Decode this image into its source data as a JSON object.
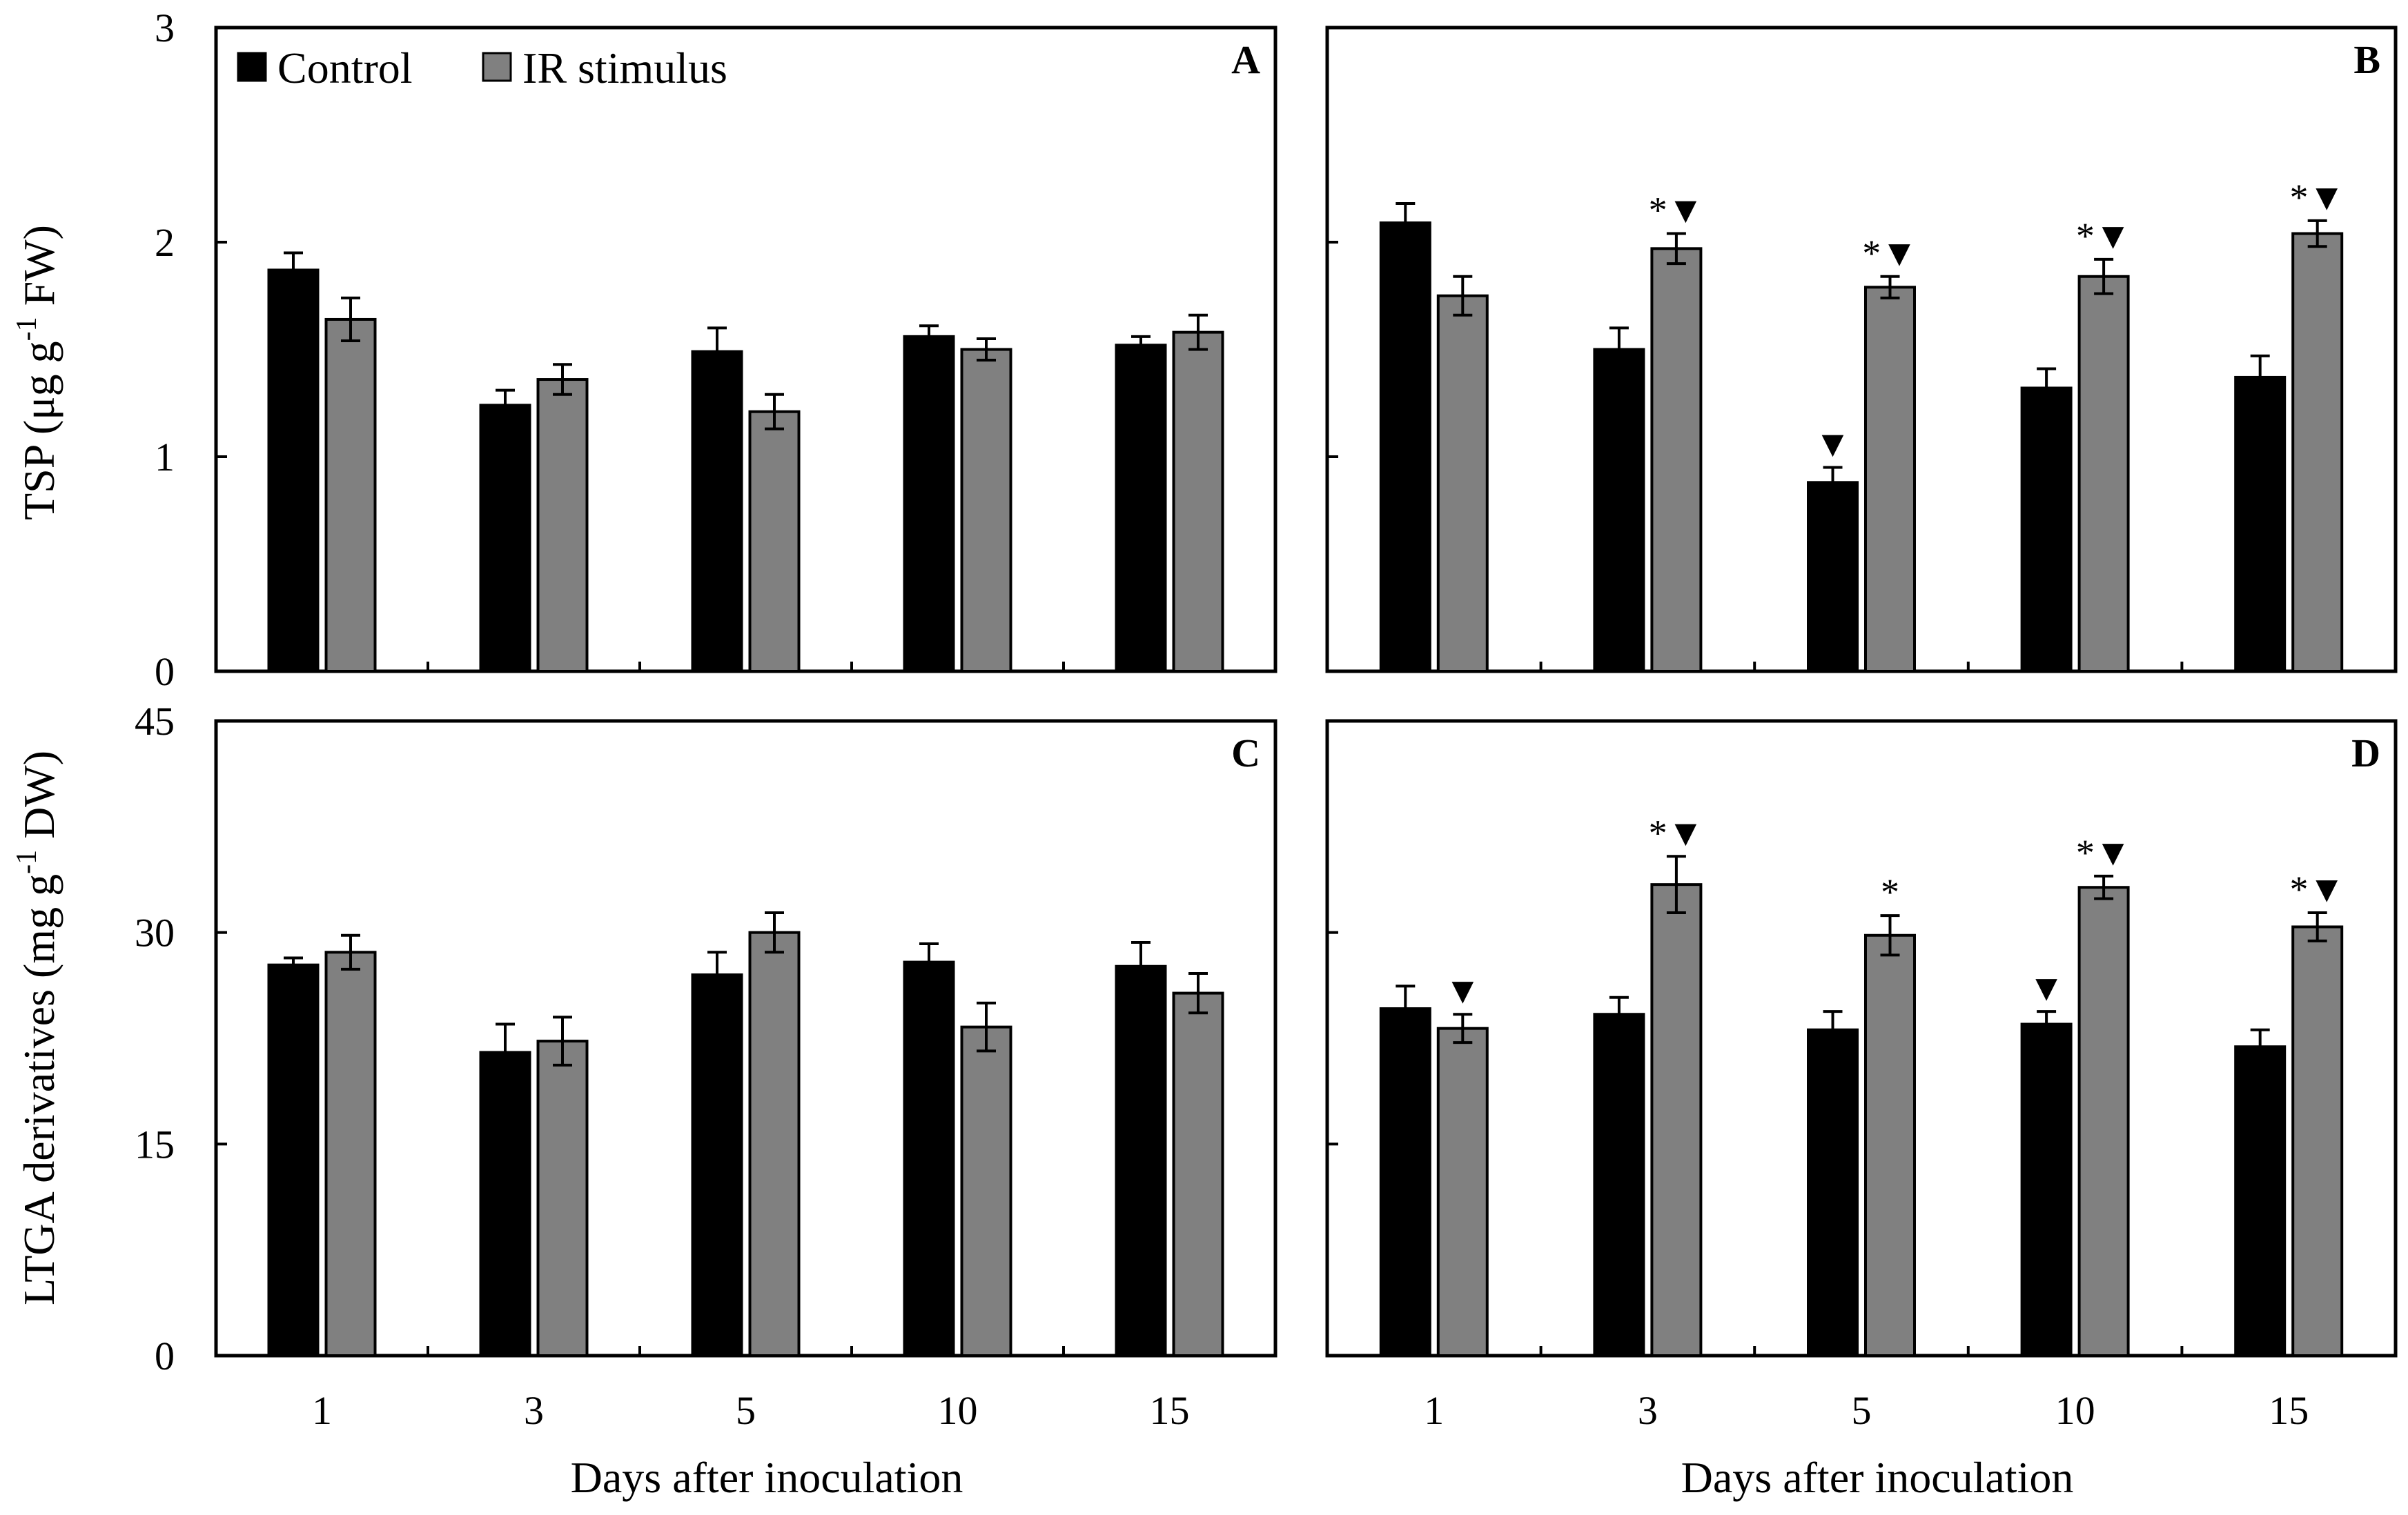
{
  "figure": {
    "ylabel_top": "TSP (μg g",
    "ylabel_top_sup": "-1",
    "ylabel_top_end": " FW)",
    "ylabel_bottom": "LTGA derivatives (mg g",
    "ylabel_bottom_sup": "-1",
    "ylabel_bottom_end": " DW)",
    "xlabel": "Days after inoculation",
    "legend": [
      {
        "label": "Control",
        "color": "#000000"
      },
      {
        "label": "IR stimulus",
        "color": "#808080"
      }
    ],
    "colors": {
      "control": "#000000",
      "ir": "#808080",
      "frame": "#000000"
    }
  },
  "chart_data": [
    {
      "panel": "A",
      "type": "bar",
      "categories": [
        "1",
        "3",
        "5",
        "10",
        "15"
      ],
      "ylim": [
        0,
        3
      ],
      "yticks": [
        "0",
        "1",
        "2",
        "3"
      ],
      "xlabel": "",
      "ylabel": "TSP (μg g-1 FW)",
      "series": [
        {
          "name": "Control",
          "values": [
            1.87,
            1.24,
            1.49,
            1.56,
            1.52
          ],
          "errors": [
            0.08,
            0.07,
            0.11,
            0.05,
            0.04
          ]
        },
        {
          "name": "IR stimulus",
          "values": [
            1.64,
            1.36,
            1.21,
            1.5,
            1.58
          ],
          "errors": [
            0.1,
            0.07,
            0.08,
            0.05,
            0.08
          ]
        }
      ],
      "markers": []
    },
    {
      "panel": "B",
      "type": "bar",
      "categories": [
        "1",
        "3",
        "5",
        "10",
        "15"
      ],
      "ylim": [
        0,
        3
      ],
      "yticks": [
        "0",
        "1",
        "2",
        "3"
      ],
      "xlabel": "",
      "ylabel": "",
      "series": [
        {
          "name": "Control",
          "values": [
            2.09,
            1.5,
            0.88,
            1.32,
            1.37
          ],
          "errors": [
            0.09,
            0.1,
            0.07,
            0.09,
            0.1
          ]
        },
        {
          "name": "IR stimulus",
          "values": [
            1.75,
            1.97,
            1.79,
            1.84,
            2.04
          ],
          "errors": [
            0.09,
            0.07,
            0.05,
            0.08,
            0.06
          ]
        }
      ],
      "markers": [
        {
          "series": 0,
          "index": 2,
          "text": "▼"
        },
        {
          "series": 1,
          "index": 1,
          "text": "*▼"
        },
        {
          "series": 1,
          "index": 2,
          "text": "*▼"
        },
        {
          "series": 1,
          "index": 3,
          "text": "*▼"
        },
        {
          "series": 1,
          "index": 4,
          "text": "*▼"
        }
      ]
    },
    {
      "panel": "C",
      "type": "bar",
      "categories": [
        "1",
        "3",
        "5",
        "10",
        "15"
      ],
      "ylim": [
        0,
        45
      ],
      "yticks": [
        "0",
        "15",
        "30",
        "45"
      ],
      "xlabel": "Days after inoculation",
      "ylabel": "LTGA derivatives (mg g-1 DW)",
      "series": [
        {
          "name": "Control",
          "values": [
            27.7,
            21.5,
            27.0,
            27.9,
            27.6
          ],
          "errors": [
            0.5,
            2.0,
            1.6,
            1.3,
            1.7
          ]
        },
        {
          "name": "IR stimulus",
          "values": [
            28.6,
            22.3,
            30.0,
            23.3,
            25.7
          ],
          "errors": [
            1.2,
            1.7,
            1.4,
            1.7,
            1.4
          ]
        }
      ],
      "markers": []
    },
    {
      "panel": "D",
      "type": "bar",
      "categories": [
        "1",
        "3",
        "5",
        "10",
        "15"
      ],
      "ylim": [
        0,
        45
      ],
      "yticks": [
        "0",
        "15",
        "30",
        "45"
      ],
      "xlabel": "Days after inoculation",
      "ylabel": "",
      "series": [
        {
          "name": "Control",
          "values": [
            24.6,
            24.2,
            23.1,
            23.5,
            21.9
          ],
          "errors": [
            1.6,
            1.2,
            1.3,
            0.9,
            1.2
          ]
        },
        {
          "name": "IR stimulus",
          "values": [
            23.2,
            33.4,
            29.8,
            33.2,
            30.4
          ],
          "errors": [
            1.0,
            2.0,
            1.4,
            0.8,
            1.0
          ]
        }
      ],
      "markers": [
        {
          "series": 1,
          "index": 0,
          "text": "▼"
        },
        {
          "series": 1,
          "index": 1,
          "text": "*▼"
        },
        {
          "series": 1,
          "index": 2,
          "text": "*"
        },
        {
          "series": 0,
          "index": 3,
          "text": "▼"
        },
        {
          "series": 1,
          "index": 3,
          "text": "*▼"
        },
        {
          "series": 1,
          "index": 4,
          "text": "*▼"
        }
      ]
    }
  ]
}
